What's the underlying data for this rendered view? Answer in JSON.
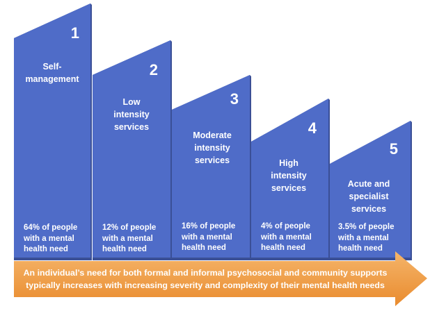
{
  "colors": {
    "column_fill": "#4f6cc8",
    "column_shadow": "#3a4f96",
    "arrow_fill": "#e98b2e",
    "arrow_light": "#f5b56a",
    "text": "#ffffff"
  },
  "tiers": [
    {
      "number": "1",
      "title": "Self-\nmanagement",
      "stat": "64% of people\nwith a mental\nhealth need"
    },
    {
      "number": "2",
      "title": "Low\nintensity\nservices",
      "stat": "12% of people\nwith a mental\nhealth need"
    },
    {
      "number": "3",
      "title": "Moderate\nintensity\nservices",
      "stat": "16% of people\nwith a mental\nhealth need"
    },
    {
      "number": "4",
      "title": "High\nintensity\nservices",
      "stat": "4% of people\nwith a mental\nhealth need"
    },
    {
      "number": "5",
      "title": "Acute and\nspecialist\nservices",
      "stat": "3.5% of people\nwith a mental\nhealth need"
    }
  ],
  "arrow_text": "An individual’s need for both formal and informal psychosocial and community supports\ntypically increases with increasing severity and complexity of their mental health needs"
}
